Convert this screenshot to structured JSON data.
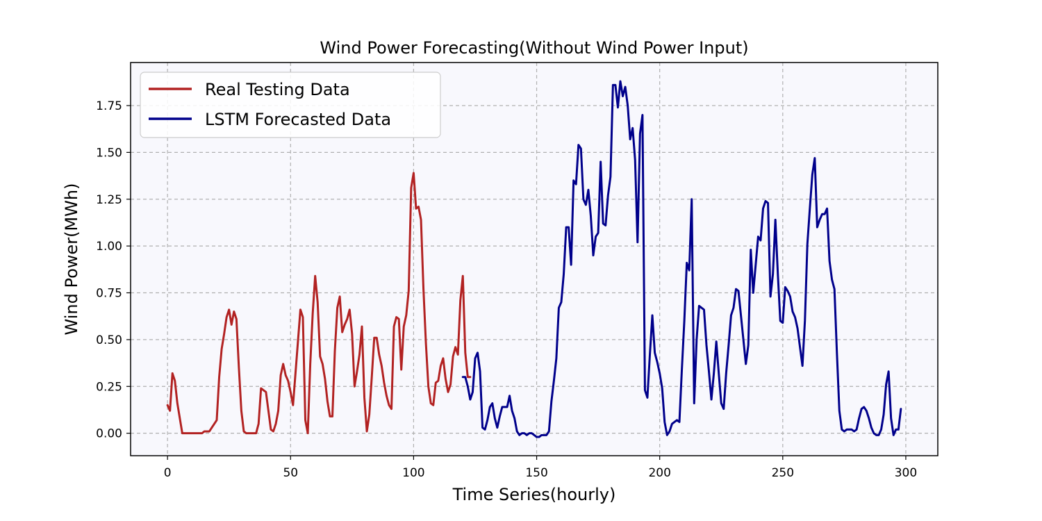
{
  "chart_data": {
    "type": "line",
    "title": "Wind Power Forecasting(Without Wind Power Input)",
    "xlabel": "Time Series(hourly)",
    "ylabel": "Wind Power(MWh)",
    "xlim": [
      -15,
      313
    ],
    "ylim": [
      -0.12,
      1.98
    ],
    "xticks": [
      0,
      50,
      100,
      150,
      200,
      250,
      300
    ],
    "xtick_labels": [
      "0",
      "50",
      "100",
      "150",
      "200",
      "250",
      "300"
    ],
    "yticks": [
      0,
      0.25,
      0.5,
      0.75,
      1.0,
      1.25,
      1.5,
      1.75
    ],
    "ytick_labels": [
      "0.00",
      "0.25",
      "0.50",
      "0.75",
      "1.00",
      "1.25",
      "1.50",
      "1.75"
    ],
    "grid": true,
    "legend_position": "top-left",
    "background": "#f8f8fd",
    "series": [
      {
        "name": "Real Testing Data",
        "color": "#b22222",
        "x_start": 0,
        "values": [
          0.15,
          0.12,
          0.32,
          0.28,
          0.16,
          0.08,
          0.0,
          0.0,
          0.0,
          0.0,
          0.0,
          0.0,
          0.0,
          0.0,
          0.0,
          0.01,
          0.01,
          0.01,
          0.03,
          0.05,
          0.07,
          0.3,
          0.45,
          0.53,
          0.62,
          0.66,
          0.58,
          0.65,
          0.61,
          0.35,
          0.12,
          0.01,
          0.0,
          0.0,
          0.0,
          0.0,
          0.0,
          0.05,
          0.24,
          0.23,
          0.22,
          0.12,
          0.02,
          0.01,
          0.05,
          0.12,
          0.31,
          0.37,
          0.31,
          0.28,
          0.22,
          0.15,
          0.32,
          0.49,
          0.66,
          0.62,
          0.07,
          0.0,
          0.37,
          0.64,
          0.84,
          0.7,
          0.41,
          0.37,
          0.29,
          0.17,
          0.09,
          0.09,
          0.44,
          0.67,
          0.73,
          0.54,
          0.58,
          0.61,
          0.66,
          0.53,
          0.25,
          0.33,
          0.42,
          0.57,
          0.19,
          0.01,
          0.1,
          0.3,
          0.51,
          0.51,
          0.42,
          0.36,
          0.27,
          0.2,
          0.15,
          0.13,
          0.57,
          0.62,
          0.61,
          0.34,
          0.57,
          0.63,
          0.76,
          1.31,
          1.39,
          1.2,
          1.21,
          1.14,
          0.77,
          0.48,
          0.25,
          0.16,
          0.15,
          0.27,
          0.28,
          0.36,
          0.4,
          0.29,
          0.22,
          0.26,
          0.41,
          0.46,
          0.42,
          0.71,
          0.84,
          0.43,
          0.3,
          0.3
        ]
      },
      {
        "name": "LSTM Forecasted Data",
        "color": "#00008b",
        "x_start": 120,
        "values": [
          0.3,
          0.3,
          0.25,
          0.18,
          0.22,
          0.4,
          0.43,
          0.33,
          0.03,
          0.02,
          0.07,
          0.14,
          0.16,
          0.08,
          0.03,
          0.09,
          0.14,
          0.14,
          0.14,
          0.2,
          0.12,
          0.08,
          0.01,
          -0.01,
          0.0,
          0.0,
          -0.01,
          0.0,
          0.0,
          -0.01,
          -0.02,
          -0.02,
          -0.01,
          -0.01,
          -0.01,
          0.01,
          0.17,
          0.28,
          0.4,
          0.67,
          0.7,
          0.85,
          1.1,
          1.1,
          0.9,
          1.35,
          1.33,
          1.54,
          1.52,
          1.25,
          1.22,
          1.3,
          1.16,
          0.95,
          1.05,
          1.07,
          1.45,
          1.12,
          1.11,
          1.27,
          1.37,
          1.86,
          1.86,
          1.74,
          1.88,
          1.8,
          1.85,
          1.75,
          1.57,
          1.63,
          1.46,
          1.02,
          1.6,
          1.7,
          0.23,
          0.19,
          0.42,
          0.63,
          0.43,
          0.38,
          0.32,
          0.24,
          0.06,
          -0.01,
          0.01,
          0.05,
          0.06,
          0.07,
          0.06,
          0.34,
          0.6,
          0.91,
          0.87,
          1.25,
          0.16,
          0.5,
          0.68,
          0.67,
          0.66,
          0.47,
          0.33,
          0.18,
          0.32,
          0.49,
          0.32,
          0.16,
          0.13,
          0.32,
          0.47,
          0.63,
          0.67,
          0.77,
          0.76,
          0.63,
          0.5,
          0.37,
          0.47,
          0.98,
          0.75,
          0.9,
          1.05,
          1.03,
          1.2,
          1.24,
          1.23,
          0.73,
          0.85,
          1.14,
          0.85,
          0.6,
          0.59,
          0.78,
          0.76,
          0.73,
          0.65,
          0.62,
          0.56,
          0.46,
          0.36,
          0.6,
          1.01,
          1.2,
          1.38,
          1.47,
          1.1,
          1.14,
          1.17,
          1.17,
          1.2,
          0.92,
          0.82,
          0.77,
          0.43,
          0.12,
          0.02,
          0.01,
          0.02,
          0.02,
          0.02,
          0.01,
          0.02,
          0.08,
          0.13,
          0.14,
          0.12,
          0.08,
          0.03,
          0.0,
          -0.01,
          -0.01,
          0.02,
          0.1,
          0.26,
          0.33,
          0.08,
          -0.01,
          0.02,
          0.02,
          0.13
        ]
      }
    ]
  }
}
